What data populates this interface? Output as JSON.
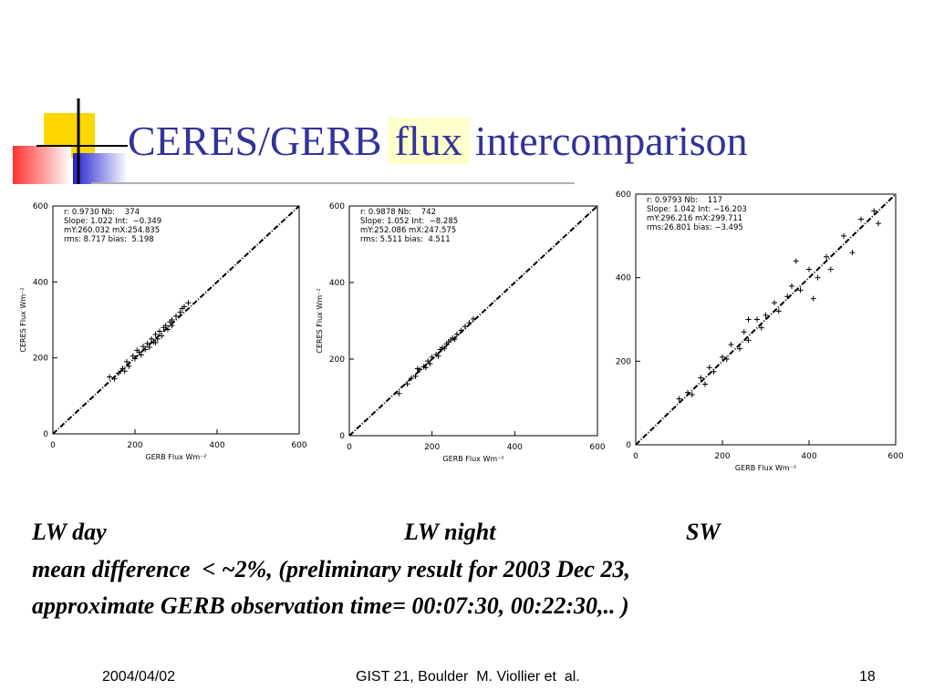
{
  "slide": {
    "title_parts": [
      "CERES/GERB",
      "flux",
      "intercomparison"
    ],
    "captions": [
      "LW day",
      "LW night",
      "SW"
    ],
    "lines": [
      "mean difference  < ~2%, (preliminary result for 2003 Dec 23,",
      "approximate GERB observation time= 00:07:30, 00:22:30,.. )"
    ],
    "footer": {
      "date": "2004/04/02",
      "center": "GIST 21, Boulder  M. Viollier et  al.",
      "page": "18"
    }
  },
  "chart_data": [
    {
      "type": "scatter",
      "x_label": "GERB Flux  Wm⁻²",
      "y_label": "CERES Flux  Wm⁻²",
      "annotations": [
        "r: 0.9730 Nb:    374",
        "Slope: 1.022 Int:  −0.349",
        "mY:260.032 mX:254.835",
        "rms: 8.717 bias:  5.198"
      ],
      "xlim": [
        0,
        600
      ],
      "ylim": [
        0,
        600
      ],
      "xticks": [
        0,
        200,
        400,
        600
      ],
      "yticks": [
        0,
        200,
        400,
        600
      ],
      "x": [
        150,
        160,
        170,
        180,
        185,
        195,
        200,
        210,
        215,
        220,
        225,
        230,
        235,
        240,
        245,
        250,
        255,
        260,
        265,
        270,
        275,
        280,
        285,
        290,
        300,
        310,
        320,
        330,
        175,
        205,
        138,
        250,
        290,
        315
      ],
      "y": [
        145,
        160,
        172,
        190,
        178,
        205,
        198,
        215,
        208,
        230,
        222,
        238,
        228,
        250,
        242,
        262,
        250,
        270,
        258,
        280,
        285,
        275,
        295,
        300,
        310,
        320,
        335,
        345,
        165,
        220,
        150,
        240,
        285,
        330
      ]
    },
    {
      "type": "scatter",
      "x_label": "GERB Flux  Wm⁻²",
      "y_label": "CERES Flux  Wm⁻²",
      "annotations": [
        "r: 0.9878 Nb:    742",
        "Slope: 1.052 Int:  −8.285",
        "mY:252.086 mX:247.575",
        "rms: 5.511 bias:  4.511"
      ],
      "xlim": [
        0,
        600
      ],
      "ylim": [
        0,
        600
      ],
      "xticks": [
        0,
        200,
        400,
        600
      ],
      "yticks": [
        0,
        200,
        400,
        600
      ],
      "x": [
        120,
        140,
        150,
        160,
        170,
        180,
        190,
        195,
        200,
        210,
        215,
        220,
        225,
        230,
        240,
        245,
        250,
        255,
        260,
        270,
        280,
        290,
        300,
        165,
        185,
        235
      ],
      "y": [
        110,
        135,
        150,
        155,
        172,
        180,
        195,
        188,
        205,
        212,
        208,
        225,
        230,
        228,
        245,
        250,
        255,
        252,
        265,
        275,
        285,
        295,
        305,
        175,
        178,
        240
      ]
    },
    {
      "type": "scatter",
      "x_label": "GERB Flux  Wm⁻²",
      "annotations": [
        "r: 0.9793 Nb:    117",
        "Slope: 1.042 Int: −16.203",
        "mY:296.216 mX:299.711",
        "rms:26.801 bias: −3.495"
      ],
      "xlim": [
        0,
        600
      ],
      "ylim": [
        0,
        600
      ],
      "xticks": [
        0,
        200,
        400,
        600
      ],
      "yticks": [
        0,
        200,
        400,
        600
      ],
      "x": [
        100,
        120,
        130,
        150,
        160,
        170,
        180,
        200,
        210,
        220,
        240,
        250,
        260,
        280,
        290,
        300,
        320,
        330,
        350,
        360,
        380,
        400,
        420,
        440,
        450,
        480,
        500,
        520,
        550,
        560,
        410,
        260,
        370
      ],
      "y": [
        110,
        125,
        120,
        160,
        145,
        185,
        175,
        210,
        205,
        240,
        230,
        270,
        250,
        300,
        280,
        310,
        340,
        320,
        355,
        380,
        370,
        420,
        400,
        450,
        420,
        500,
        460,
        540,
        560,
        530,
        350,
        300,
        440
      ]
    }
  ]
}
